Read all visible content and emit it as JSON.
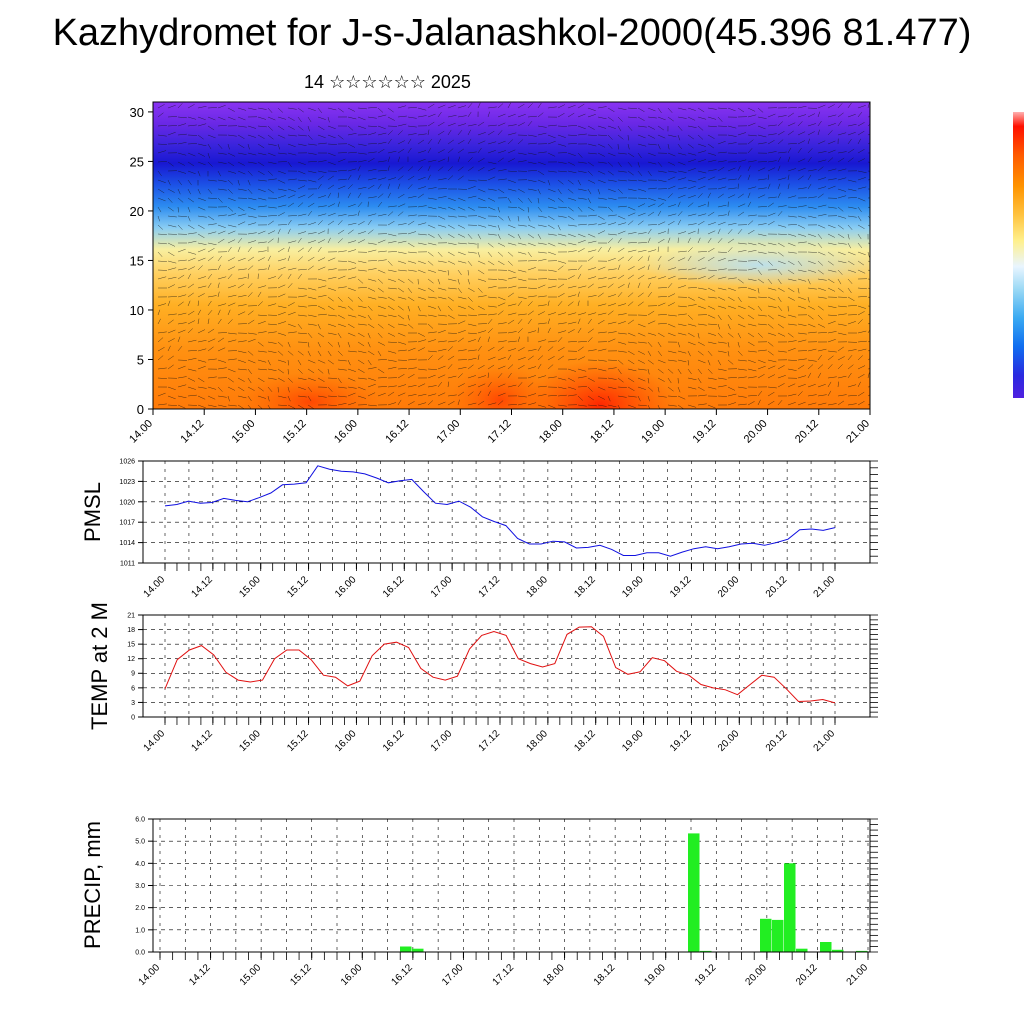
{
  "page": {
    "title": "Kazhydromet for J-s-Jalanashkol-2000(45.396 81.477)",
    "subtitle": "14 ☆☆☆☆☆☆ 2025"
  },
  "colors": {
    "pmsl_line": "#1010e0",
    "temp_line": "#e01010",
    "precip_bar": "#22ee22",
    "colorbar": [
      "#ff1000",
      "#ff5a00",
      "#ff9400",
      "#ffc340",
      "#fff08c",
      "#e9f5ff",
      "#9bd9f5",
      "#3aaaf2",
      "#106ef0",
      "#2424dc",
      "#4b1ed8",
      "#7d28f0",
      "#a040f0"
    ]
  },
  "chart_data": [
    {
      "type": "heatmap",
      "name": "cross-section",
      "ylim": [
        0,
        31
      ],
      "yticks": [
        0,
        5,
        10,
        15,
        20,
        25,
        30
      ],
      "x_tick_labels": [
        "14.00",
        "14.12",
        "15.00",
        "15.12",
        "16.00",
        "16.12",
        "17.00",
        "17.12",
        "18.00",
        "18.12",
        "19.00",
        "19.12",
        "20.00",
        "20.12",
        "21.00"
      ],
      "wind_barbs": true,
      "grid": false,
      "colorbar": "right"
    },
    {
      "type": "line",
      "name": "pmsl",
      "ylabel": "PMSL",
      "ylim": [
        1011,
        1026
      ],
      "yticks": [
        1011,
        1014,
        1017,
        1020,
        1023,
        1026
      ],
      "x_tick_labels": [
        "14.00",
        "14.12",
        "15.00",
        "15.12",
        "16.00",
        "16.12",
        "17.00",
        "17.12",
        "18.00",
        "18.12",
        "19.00",
        "19.12",
        "20.00",
        "20.12",
        "21.00"
      ],
      "grid": true,
      "values": [
        1019.4,
        1019.6,
        1020.1,
        1019.8,
        1019.9,
        1020.5,
        1020.2,
        1020.0,
        1020.6,
        1021.3,
        1022.5,
        1022.6,
        1022.8,
        1025.3,
        1024.8,
        1024.5,
        1024.4,
        1024.1,
        1023.5,
        1022.8,
        1023.1,
        1023.3,
        1021.5,
        1019.8,
        1019.6,
        1020.1,
        1019.2,
        1017.8,
        1017.1,
        1016.5,
        1014.6,
        1013.8,
        1013.8,
        1014.2,
        1014.1,
        1013.2,
        1013.3,
        1013.6,
        1013.0,
        1012.1,
        1012.1,
        1012.5,
        1012.5,
        1012.0,
        1012.6,
        1013.1,
        1013.4,
        1013.1,
        1013.4,
        1013.8,
        1013.9,
        1013.6,
        1014.0,
        1014.5,
        1015.9,
        1016.0,
        1015.8,
        1016.2
      ]
    },
    {
      "type": "line",
      "name": "temp-2m",
      "ylabel": "TEMP at 2 M",
      "ylim": [
        0,
        21
      ],
      "yticks": [
        0,
        3,
        6,
        9,
        12,
        15,
        18,
        21
      ],
      "x_tick_labels": [
        "14.00",
        "14.12",
        "15.00",
        "15.12",
        "16.00",
        "16.12",
        "17.00",
        "17.12",
        "18.00",
        "18.12",
        "19.00",
        "19.12",
        "20.00",
        "20.12",
        "21.00"
      ],
      "grid": true,
      "values": [
        5.8,
        11.8,
        13.8,
        14.7,
        12.8,
        9.2,
        7.6,
        7.2,
        7.6,
        12.0,
        13.8,
        13.8,
        11.8,
        8.6,
        8.2,
        6.4,
        7.4,
        12.6,
        15.0,
        15.4,
        14.3,
        10.0,
        8.2,
        7.6,
        8.4,
        14.0,
        16.8,
        17.6,
        16.8,
        12.0,
        11.0,
        10.3,
        11.0,
        17.0,
        18.5,
        18.6,
        16.6,
        10.2,
        8.8,
        9.3,
        12.2,
        11.6,
        9.4,
        8.6,
        6.7,
        6.0,
        5.6,
        4.6,
        6.6,
        8.6,
        8.2,
        5.8,
        3.2,
        3.3,
        3.6,
        2.9
      ]
    },
    {
      "type": "bar",
      "name": "precip",
      "ylabel": "PRECIP, mm",
      "ylim": [
        0,
        6
      ],
      "yticks": [
        0,
        1,
        2,
        3,
        4,
        5,
        6
      ],
      "ytick_labels": [
        "0.0",
        "1.0",
        "2.0",
        "3.0",
        "4.0",
        "5.0",
        "6.0"
      ],
      "x_tick_labels": [
        "14.00",
        "14.12",
        "15.00",
        "15.12",
        "16.00",
        "16.12",
        "17.00",
        "17.12",
        "18.00",
        "18.12",
        "19.00",
        "19.12",
        "20.00",
        "20.12",
        "21.00"
      ],
      "grid": true,
      "values": [
        0,
        0,
        0,
        0,
        0,
        0,
        0,
        0,
        0,
        0,
        0,
        0,
        0,
        0,
        0,
        0,
        0,
        0,
        0,
        0,
        0.25,
        0.15,
        0,
        0,
        0,
        0,
        0,
        0,
        0,
        0,
        0,
        0,
        0,
        0,
        0,
        0,
        0,
        0,
        0,
        0,
        0,
        0,
        0,
        0,
        5.35,
        0.05,
        0,
        0,
        0,
        0,
        1.5,
        1.45,
        4.0,
        0.15,
        0,
        0.45,
        0.1,
        0,
        0.05
      ]
    }
  ]
}
